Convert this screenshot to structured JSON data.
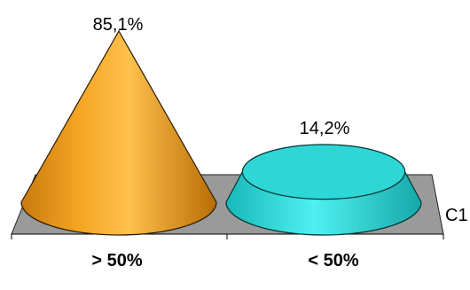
{
  "chart_data": {
    "type": "bar",
    "style": "3d-cone",
    "categories": [
      "> 50%",
      "< 50%"
    ],
    "series": [
      {
        "name": "C1",
        "values": [
          85.1,
          14.2
        ],
        "labels": [
          "85,1%",
          "14,2%"
        ],
        "colors": [
          "#f5a623",
          "#33dddd"
        ]
      }
    ],
    "ylim": [
      0,
      100
    ],
    "legend": "none",
    "grid": false
  }
}
